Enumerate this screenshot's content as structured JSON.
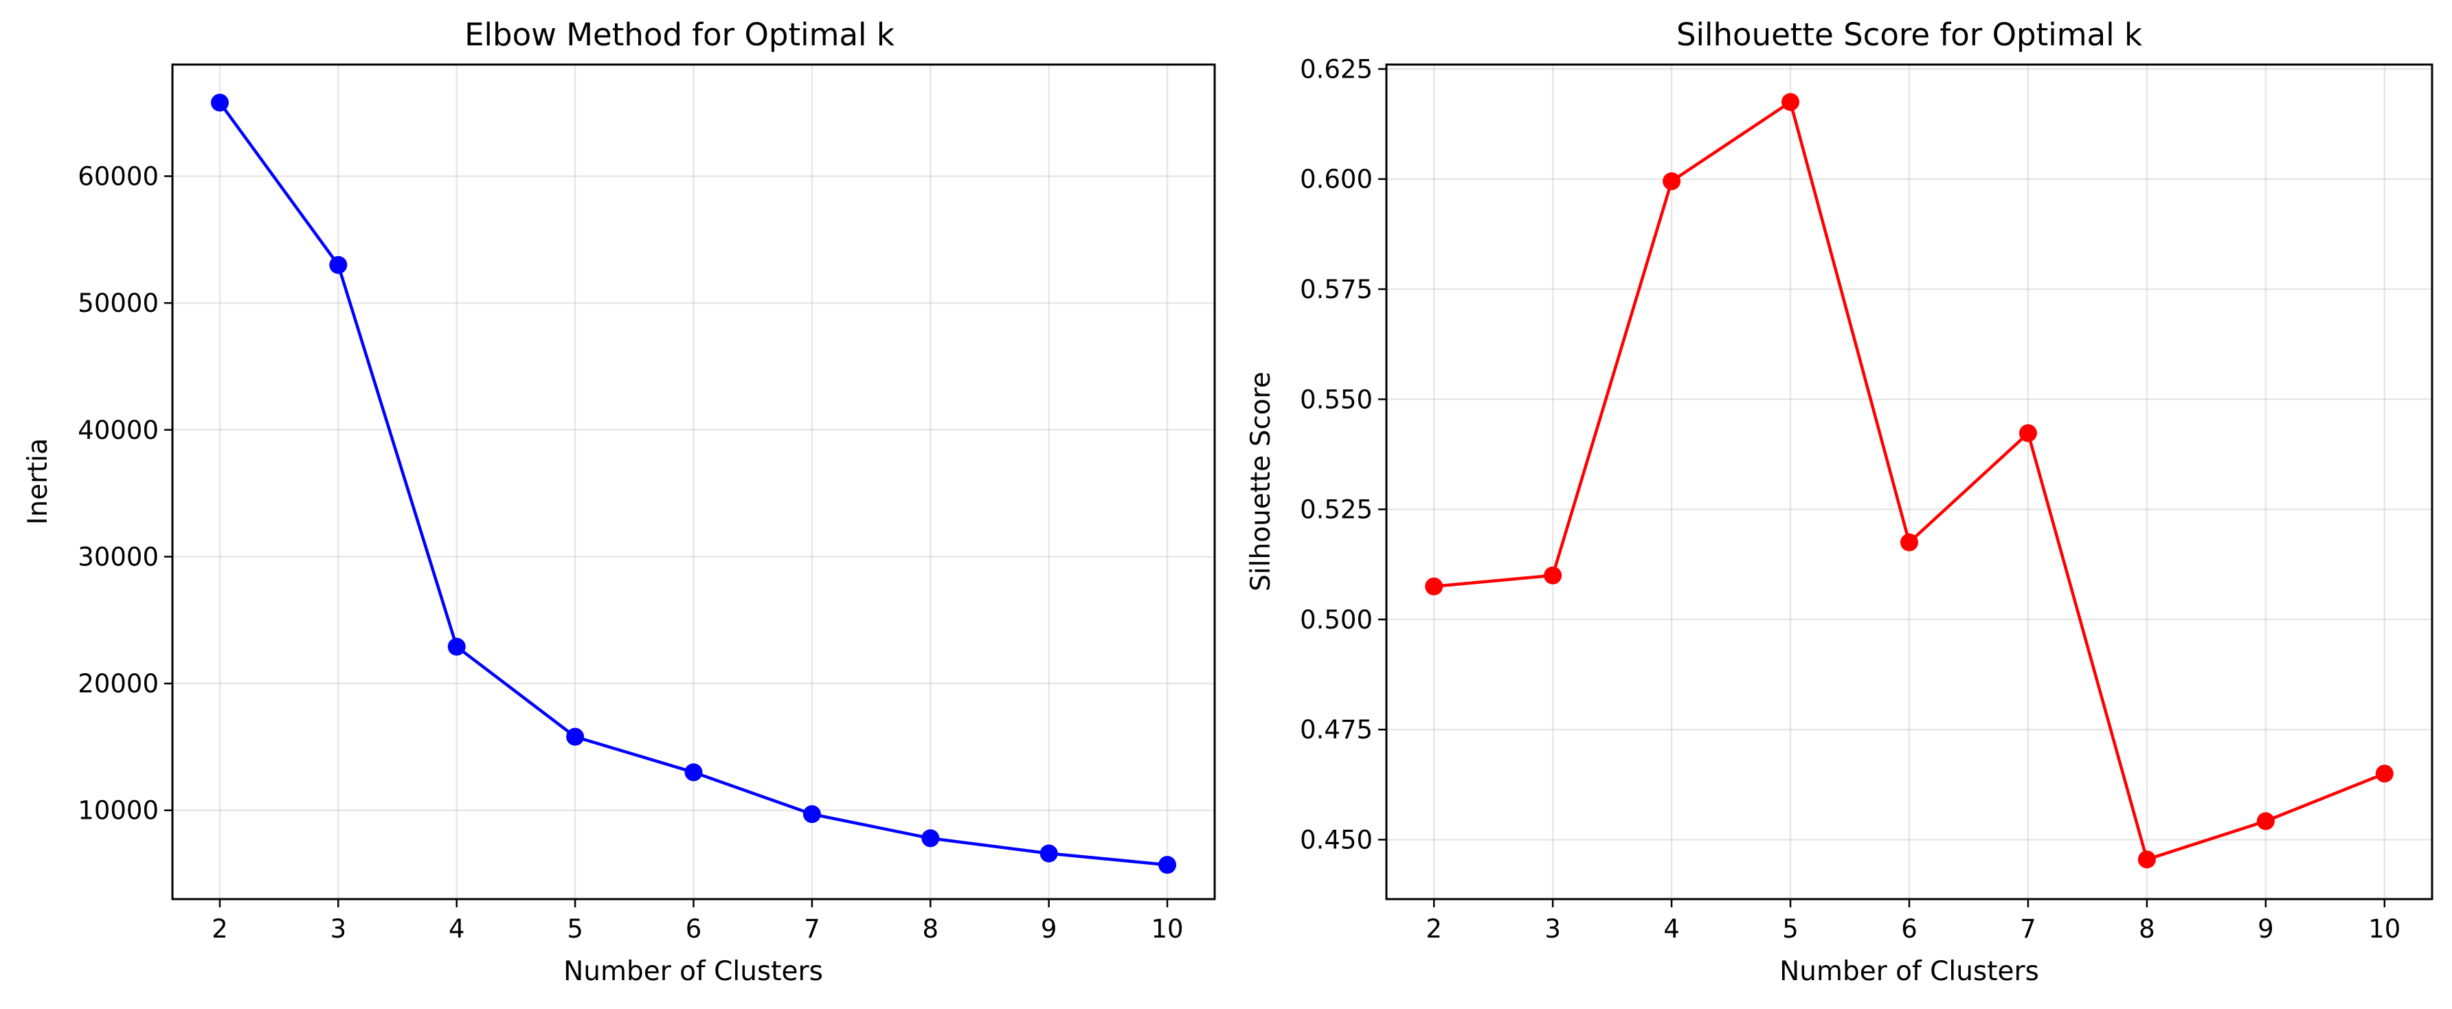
{
  "chart_data": [
    {
      "type": "line",
      "title": "Elbow Method for Optimal k",
      "xlabel": "Number of Clusters",
      "ylabel": "Inertia",
      "color": "#0000ff",
      "marker": "circle",
      "grid": true,
      "xlim": [
        1.6,
        10.4
      ],
      "ylim": [
        3000,
        68800
      ],
      "xticks": [
        2,
        3,
        4,
        5,
        6,
        7,
        8,
        9,
        10
      ],
      "yticks": [
        10000,
        20000,
        30000,
        40000,
        50000,
        60000
      ],
      "x": [
        2,
        3,
        4,
        5,
        6,
        7,
        8,
        9,
        10
      ],
      "y": [
        65800,
        53000,
        22900,
        15800,
        13000,
        9700,
        7800,
        6600,
        5700
      ]
    },
    {
      "type": "line",
      "title": "Silhouette Score for Optimal k",
      "xlabel": "Number of Clusters",
      "ylabel": "Silhouette Score",
      "color": "#ff0000",
      "marker": "circle",
      "grid": true,
      "xlim": [
        1.6,
        10.4
      ],
      "ylim": [
        0.4365,
        0.626
      ],
      "xticks": [
        2,
        3,
        4,
        5,
        6,
        7,
        8,
        9,
        10
      ],
      "yticks": [
        0.45,
        0.475,
        0.5,
        0.525,
        0.55,
        0.575,
        0.6,
        0.625
      ],
      "ytick_labels": [
        "0.450",
        "0.475",
        "0.500",
        "0.525",
        "0.550",
        "0.575",
        "0.600",
        "0.625"
      ],
      "x": [
        2,
        3,
        4,
        5,
        6,
        7,
        8,
        9,
        10
      ],
      "y": [
        0.5075,
        0.51,
        0.5995,
        0.6175,
        0.5175,
        0.5423,
        0.4455,
        0.4542,
        0.465
      ]
    }
  ]
}
